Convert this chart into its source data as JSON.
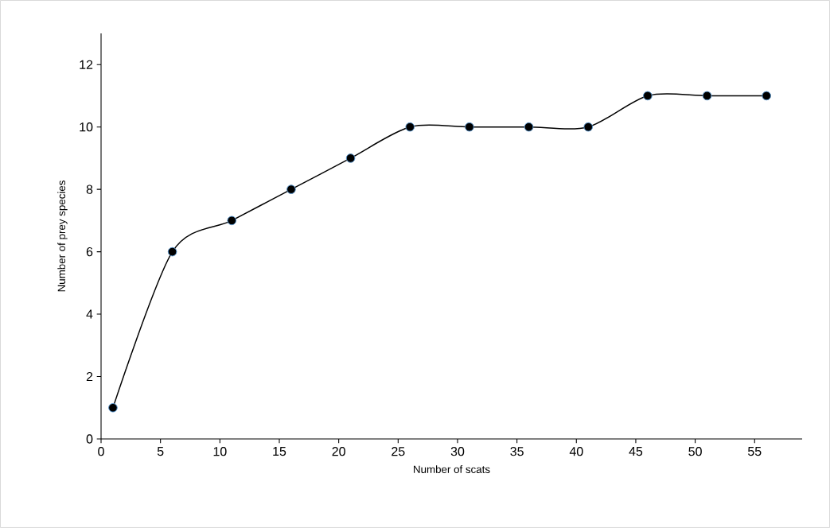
{
  "chart_data": {
    "type": "line",
    "xlabel": "Number of scats",
    "ylabel": "Number of prey species",
    "x": [
      1,
      6,
      11,
      16,
      21,
      26,
      31,
      36,
      41,
      46,
      51,
      56
    ],
    "series": [
      {
        "color": "#000000",
        "values": [
          1,
          6,
          7,
          8,
          9,
          10,
          10,
          10,
          10,
          11,
          11,
          11
        ]
      }
    ],
    "xlim": [
      0,
      59
    ],
    "ylim": [
      0,
      13
    ],
    "xticks": [
      0,
      5,
      10,
      15,
      20,
      25,
      30,
      35,
      40,
      45,
      50,
      55
    ],
    "yticks": [
      0,
      2,
      4,
      6,
      8,
      10,
      12
    ],
    "grid": false,
    "marker": "circle",
    "line_style": "solid"
  }
}
